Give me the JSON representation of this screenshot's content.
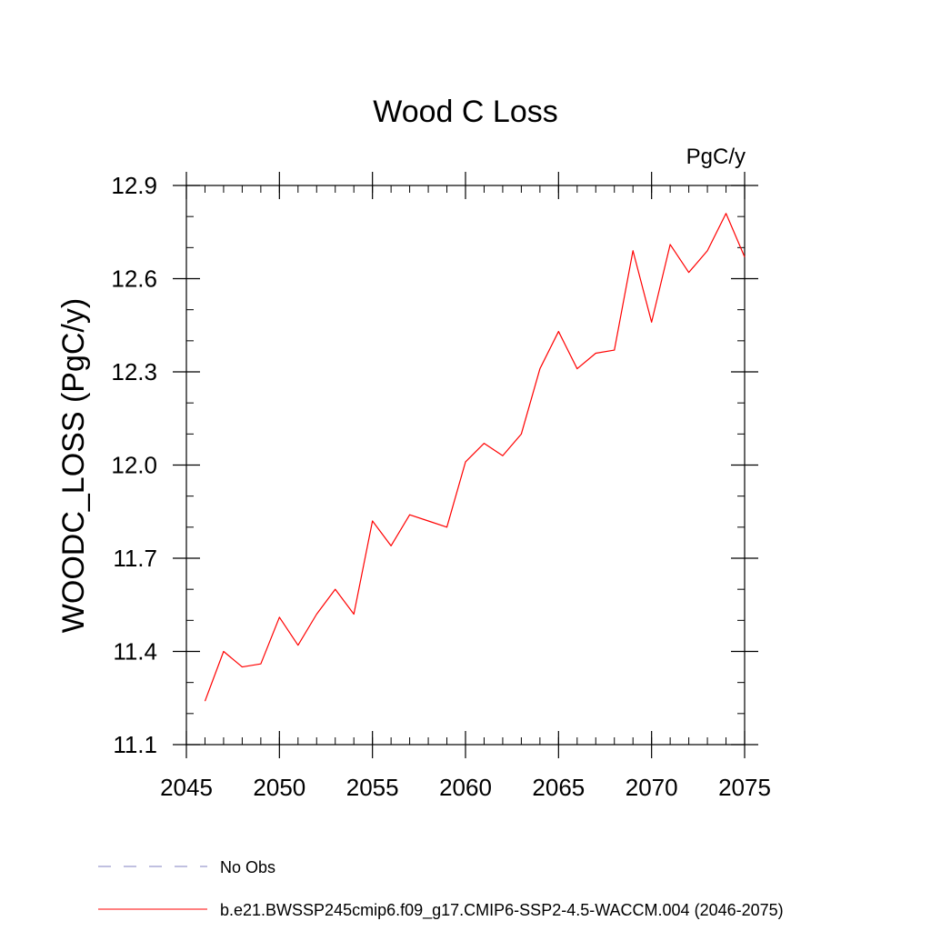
{
  "chart_data": {
    "type": "line",
    "title": "Wood C Loss",
    "units_label": "PgC/y",
    "ylabel": "WOODC_LOSS  (PgC/y)",
    "xlabel": "",
    "xlim": [
      2045,
      2075
    ],
    "ylim": [
      11.1,
      12.9
    ],
    "x_ticks": [
      2045,
      2050,
      2055,
      2060,
      2065,
      2070,
      2075
    ],
    "x_tick_labels": [
      "2045",
      "2050",
      "2055",
      "2060",
      "2065",
      "2070",
      "2075"
    ],
    "y_ticks": [
      11.1,
      11.4,
      11.7,
      12.0,
      12.3,
      12.6,
      12.9
    ],
    "y_tick_labels": [
      "11.1",
      "11.4",
      "11.7",
      "12.0",
      "12.3",
      "12.6",
      "12.9"
    ],
    "y_minor_step": 0.1,
    "x_minor_step": 1,
    "grid": false,
    "series": [
      {
        "name": "b.e21.BWSSP245cmip6.f09_g17.CMIP6-SSP2-4.5-WACCM.004 (2046-2075)",
        "color": "#ff0000",
        "x": [
          2046,
          2047,
          2048,
          2049,
          2050,
          2051,
          2052,
          2053,
          2054,
          2055,
          2056,
          2057,
          2058,
          2059,
          2060,
          2061,
          2062,
          2063,
          2064,
          2065,
          2066,
          2067,
          2068,
          2069,
          2070,
          2071,
          2072,
          2073,
          2074,
          2075
        ],
        "values": [
          11.24,
          11.4,
          11.35,
          11.36,
          11.51,
          11.42,
          11.52,
          11.6,
          11.52,
          11.82,
          11.74,
          11.84,
          11.82,
          11.8,
          12.01,
          12.07,
          12.03,
          12.1,
          12.31,
          12.43,
          12.31,
          12.36,
          12.37,
          12.69,
          12.46,
          12.71,
          12.62,
          12.69,
          12.81,
          12.67
        ]
      }
    ],
    "legend": [
      {
        "label": "No Obs",
        "style": "dashed",
        "color": "#8080c0"
      },
      {
        "label": "b.e21.BWSSP245cmip6.f09_g17.CMIP6-SSP2-4.5-WACCM.004 (2046-2075)",
        "style": "solid",
        "color": "#ff0000"
      }
    ],
    "legend_position": "bottom"
  }
}
